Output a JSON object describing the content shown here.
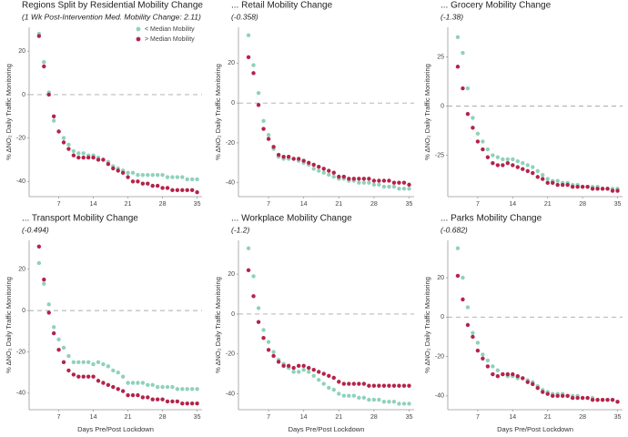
{
  "chart_data": [
    {
      "type": "scatter",
      "title": "Regions Split by Residential Mobility Change",
      "subtitle": "(1 Wk Post-Intervention Med. Mobility Change: 2.11)",
      "ylabel": "% ΔNO₂ Daily Traffic Monitoring",
      "legend": "top-right",
      "x": [
        3,
        4,
        5,
        6,
        7,
        8,
        9,
        10,
        11,
        12,
        13,
        14,
        15,
        16,
        17,
        18,
        19,
        20,
        21,
        22,
        23,
        24,
        25,
        26,
        27,
        28,
        29,
        30,
        31,
        32,
        33,
        34,
        35
      ],
      "xlim": [
        1,
        36
      ],
      "xticks": [
        7,
        14,
        21,
        28,
        35
      ],
      "ylim": [
        -47,
        31
      ],
      "yticks": [
        20,
        0,
        -20,
        -40
      ],
      "reference_line": 0,
      "series": [
        {
          "name": "< Median Mobility",
          "color": "#8fd1bc",
          "values": [
            28,
            15,
            1,
            -12,
            -17,
            -20,
            -23,
            -26,
            -27,
            -27,
            -28,
            -28,
            -29,
            -30,
            -31,
            -33,
            -34,
            -35,
            -36,
            -36,
            -37,
            -37,
            -37,
            -37,
            -37,
            -37,
            -38,
            -38,
            -38,
            -38,
            -39,
            -39,
            -39
          ]
        },
        {
          "name": "> Median Mobility",
          "color": "#b5234a",
          "values": [
            27,
            13,
            0,
            -10,
            -17,
            -22,
            -25,
            -28,
            -29,
            -29,
            -29,
            -29,
            -30,
            -30,
            -32,
            -34,
            -35,
            -36,
            -38,
            -40,
            -40,
            -41,
            -41,
            -42,
            -42,
            -43,
            -43,
            -44,
            -44,
            -44,
            -44,
            -44,
            -45
          ]
        }
      ]
    },
    {
      "type": "scatter",
      "title": "... Retail Mobility Change",
      "subtitle": "(-0.358)",
      "ylabel": "% ΔNO₂ Daily Traffic Monitoring",
      "x": [
        3,
        4,
        5,
        6,
        7,
        8,
        9,
        10,
        11,
        12,
        13,
        14,
        15,
        16,
        17,
        18,
        19,
        20,
        21,
        22,
        23,
        24,
        25,
        26,
        27,
        28,
        29,
        30,
        31,
        32,
        33,
        34,
        35
      ],
      "xlim": [
        1,
        36
      ],
      "xticks": [
        7,
        14,
        21,
        28,
        35
      ],
      "ylim": [
        -47,
        38
      ],
      "yticks": [
        20,
        0,
        -20,
        -40
      ],
      "reference_line": 0,
      "series": [
        {
          "color": "#8fd1bc",
          "values": [
            34,
            19,
            5,
            -9,
            -16,
            -23,
            -27,
            -28,
            -28,
            -28,
            -29,
            -30,
            -31,
            -33,
            -34,
            -35,
            -36,
            -37,
            -38,
            -38,
            -39,
            -39,
            -40,
            -40,
            -40,
            -41,
            -41,
            -42,
            -42,
            -42,
            -43,
            -43,
            -43
          ]
        },
        {
          "color": "#b5234a",
          "values": [
            23,
            15,
            -1,
            -13,
            -18,
            -22,
            -26,
            -27,
            -27,
            -28,
            -28,
            -29,
            -30,
            -31,
            -32,
            -33,
            -34,
            -35,
            -37,
            -37,
            -38,
            -38,
            -38,
            -38,
            -38,
            -39,
            -39,
            -39,
            -39,
            -40,
            -40,
            -40,
            -41
          ]
        }
      ]
    },
    {
      "type": "scatter",
      "title": "... Grocery Mobility Change",
      "subtitle": "(-1.38)",
      "ylabel": "% ΔNO₂ Daily Traffic Monitoring",
      "x": [
        3,
        4,
        5,
        6,
        7,
        8,
        9,
        10,
        11,
        12,
        13,
        14,
        15,
        16,
        17,
        18,
        19,
        20,
        21,
        22,
        23,
        24,
        25,
        26,
        27,
        28,
        29,
        30,
        31,
        32,
        33,
        34,
        35
      ],
      "xlim": [
        1,
        36
      ],
      "xticks": [
        7,
        14,
        21,
        28,
        35
      ],
      "ylim": [
        -46,
        40
      ],
      "yticks": [
        25,
        0,
        -25
      ],
      "reference_line": 0,
      "series": [
        {
          "color": "#8fd1bc",
          "values": [
            35,
            27,
            9,
            -6,
            -14,
            -18,
            -22,
            -25,
            -26,
            -27,
            -27,
            -27,
            -28,
            -29,
            -30,
            -31,
            -33,
            -35,
            -37,
            -38,
            -38,
            -39,
            -39,
            -40,
            -40,
            -41,
            -41,
            -41,
            -41,
            -42,
            -42,
            -42,
            -42
          ]
        },
        {
          "color": "#b5234a",
          "values": [
            20,
            9,
            -4,
            -11,
            -18,
            -22,
            -26,
            -29,
            -30,
            -30,
            -29,
            -30,
            -31,
            -32,
            -33,
            -34,
            -36,
            -37,
            -39,
            -39,
            -40,
            -40,
            -40,
            -41,
            -41,
            -41,
            -41,
            -42,
            -42,
            -42,
            -42,
            -43,
            -43
          ]
        }
      ]
    },
    {
      "type": "scatter",
      "title": "... Transport Mobility Change",
      "subtitle": "(-0.494)",
      "ylabel": "% ΔNO₂ Daily Traffic Monitoring",
      "xlabel": "Days Pre/Post Lockdown",
      "x": [
        3,
        4,
        5,
        6,
        7,
        8,
        9,
        10,
        11,
        12,
        13,
        14,
        15,
        16,
        17,
        18,
        19,
        20,
        21,
        22,
        23,
        24,
        25,
        26,
        27,
        28,
        29,
        30,
        31,
        32,
        33,
        34,
        35
      ],
      "xlim": [
        1,
        36
      ],
      "xticks": [
        7,
        14,
        21,
        28,
        35
      ],
      "ylim": [
        -48,
        34
      ],
      "yticks": [
        20,
        0,
        -20,
        -40
      ],
      "reference_line": 0,
      "series": [
        {
          "color": "#8fd1bc",
          "values": [
            23,
            13,
            3,
            -8,
            -14,
            -18,
            -22,
            -25,
            -25,
            -25,
            -25,
            -26,
            -25,
            -26,
            -27,
            -29,
            -30,
            -32,
            -35,
            -35,
            -35,
            -35,
            -36,
            -36,
            -37,
            -37,
            -37,
            -37,
            -38,
            -38,
            -38,
            -38,
            -38
          ]
        },
        {
          "color": "#b5234a",
          "values": [
            31,
            15,
            -1,
            -11,
            -19,
            -25,
            -29,
            -31,
            -32,
            -32,
            -32,
            -32,
            -34,
            -35,
            -36,
            -37,
            -38,
            -39,
            -41,
            -41,
            -41,
            -42,
            -42,
            -43,
            -43,
            -43,
            -44,
            -44,
            -44,
            -45,
            -45,
            -45,
            -45
          ]
        }
      ]
    },
    {
      "type": "scatter",
      "title": "... Workplace Mobility Change",
      "subtitle": "(-1.2)",
      "ylabel": "% ΔNO₂ Daily Traffic Monitoring",
      "xlabel": "Days Pre/Post Lockdown",
      "x": [
        3,
        4,
        5,
        6,
        7,
        8,
        9,
        10,
        11,
        12,
        13,
        14,
        15,
        16,
        17,
        18,
        19,
        20,
        21,
        22,
        23,
        24,
        25,
        26,
        27,
        28,
        29,
        30,
        31,
        32,
        33,
        34,
        35
      ],
      "xlim": [
        1,
        36
      ],
      "xticks": [
        7,
        14,
        21,
        28,
        35
      ],
      "ylim": [
        -48,
        37
      ],
      "yticks": [
        20,
        0,
        -20,
        -40
      ],
      "reference_line": 0,
      "series": [
        {
          "color": "#8fd1bc",
          "values": [
            33,
            19,
            3,
            -8,
            -14,
            -19,
            -23,
            -25,
            -27,
            -29,
            -29,
            -28,
            -29,
            -31,
            -33,
            -35,
            -37,
            -38,
            -40,
            -41,
            -41,
            -41,
            -42,
            -42,
            -43,
            -43,
            -43,
            -44,
            -44,
            -44,
            -45,
            -45,
            -45
          ]
        },
        {
          "color": "#b5234a",
          "values": [
            22,
            9,
            -4,
            -12,
            -18,
            -21,
            -24,
            -26,
            -26,
            -27,
            -26,
            -26,
            -27,
            -28,
            -29,
            -30,
            -31,
            -32,
            -34,
            -35,
            -35,
            -35,
            -35,
            -35,
            -36,
            -36,
            -36,
            -36,
            -36,
            -36,
            -36,
            -36,
            -36
          ]
        }
      ]
    },
    {
      "type": "scatter",
      "title": "... Parks Mobility Change",
      "subtitle": "(-0.682)",
      "ylabel": "% ΔNO₂ Daily Traffic Monitoring",
      "xlabel": "Days Pre/Post Lockdown",
      "x": [
        3,
        4,
        5,
        6,
        7,
        8,
        9,
        10,
        11,
        12,
        13,
        14,
        15,
        16,
        17,
        18,
        19,
        20,
        21,
        22,
        23,
        24,
        25,
        26,
        27,
        28,
        29,
        30,
        31,
        32,
        33,
        34,
        35
      ],
      "xlim": [
        1,
        36
      ],
      "xticks": [
        7,
        14,
        21,
        28,
        35
      ],
      "ylim": [
        -47,
        39
      ],
      "yticks": [
        20,
        0,
        -20,
        -40
      ],
      "reference_line": 0,
      "series": [
        {
          "color": "#8fd1bc",
          "values": [
            35,
            20,
            5,
            -8,
            -13,
            -19,
            -22,
            -25,
            -27,
            -29,
            -30,
            -30,
            -31,
            -31,
            -32,
            -33,
            -35,
            -37,
            -38,
            -39,
            -39,
            -39,
            -40,
            -40,
            -40,
            -41,
            -41,
            -41,
            -42,
            -42,
            -42,
            -42,
            -43
          ]
        },
        {
          "color": "#b5234a",
          "values": [
            21,
            9,
            -4,
            -10,
            -17,
            -21,
            -25,
            -29,
            -30,
            -29,
            -29,
            -29,
            -30,
            -31,
            -33,
            -34,
            -36,
            -38,
            -39,
            -40,
            -40,
            -40,
            -40,
            -41,
            -41,
            -41,
            -41,
            -42,
            -42,
            -42,
            -42,
            -42,
            -43
          ]
        }
      ]
    }
  ]
}
